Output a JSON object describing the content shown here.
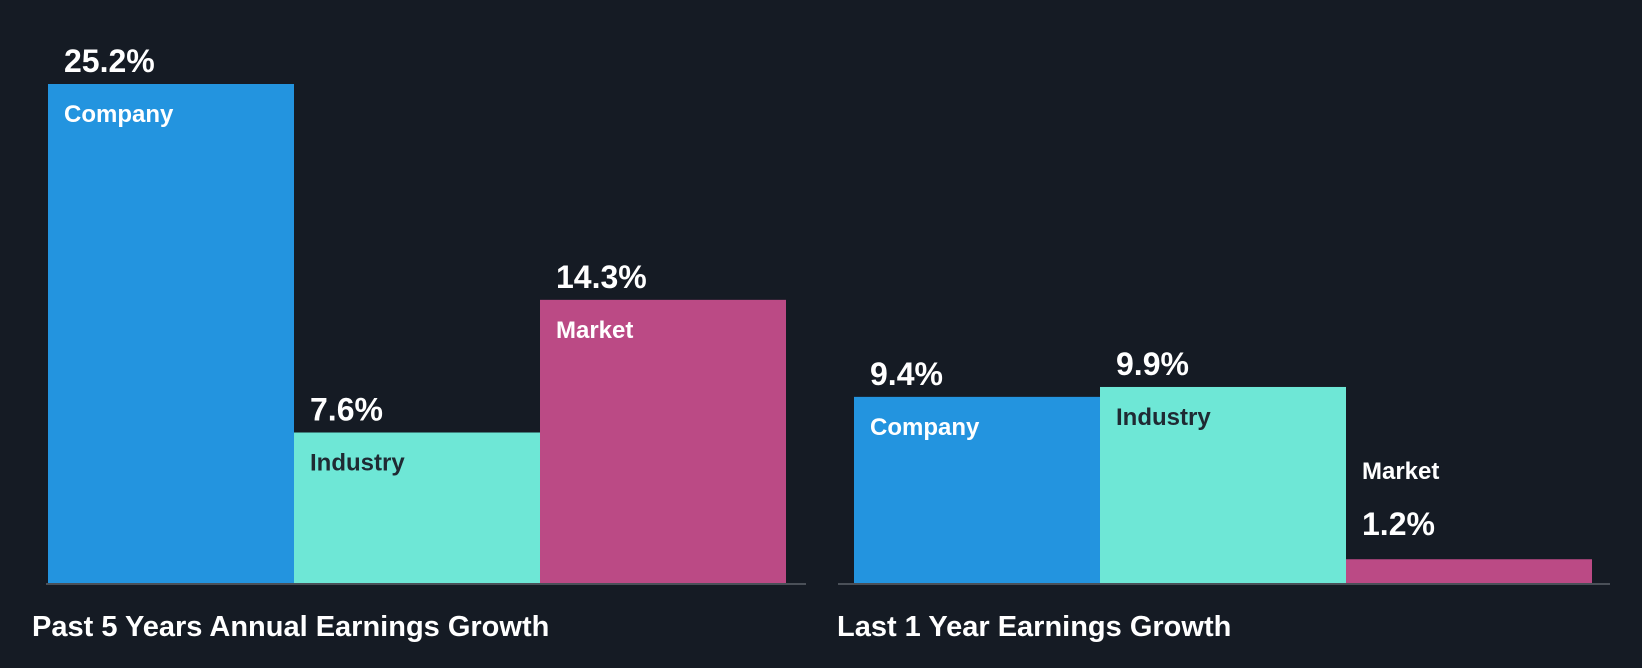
{
  "colors": {
    "background": "#151b24",
    "baseline": "#4a5058",
    "company": "#2394df",
    "industry": "#6ee7d6",
    "market": "#bb4a85",
    "text_light": "#ffffff",
    "text_dark": "#1f2a33"
  },
  "chart_data": [
    {
      "type": "bar",
      "title": "Past 5 Years Annual Earnings Growth",
      "categories": [
        "Company",
        "Industry",
        "Market"
      ],
      "values": [
        25.2,
        7.6,
        14.3
      ],
      "value_labels": [
        "25.2%",
        "7.6%",
        "14.3%"
      ],
      "unit": "%",
      "ylim": [
        0,
        25.2
      ],
      "grid": false,
      "legend": "none"
    },
    {
      "type": "bar",
      "title": "Last 1 Year Earnings Growth",
      "categories": [
        "Company",
        "Industry",
        "Market"
      ],
      "values": [
        9.4,
        9.9,
        1.2
      ],
      "value_labels": [
        "9.4%",
        "9.9%",
        "1.2%"
      ],
      "unit": "%",
      "ylim": [
        0,
        25.2
      ],
      "grid": false,
      "legend": "none"
    }
  ]
}
